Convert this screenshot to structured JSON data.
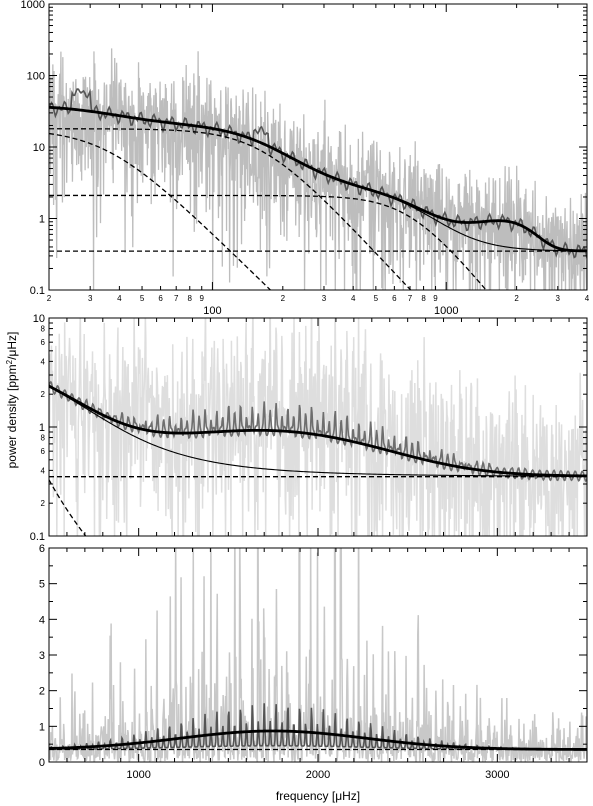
{
  "chart_data": [
    {
      "type": "line",
      "panel": "top",
      "scale": {
        "x": "log",
        "y": "log"
      },
      "xlim": [
        20,
        4000
      ],
      "ylim": [
        0.1,
        1000
      ],
      "grid": false,
      "x_major_ticks": [
        {
          "value": 100,
          "label": "100"
        },
        {
          "value": 1000,
          "label": "1000"
        }
      ],
      "x_minor_ticks": [
        {
          "value": 20,
          "label": "2"
        },
        {
          "value": 30,
          "label": "3"
        },
        {
          "value": 40,
          "label": "4"
        },
        {
          "value": 50,
          "label": "5"
        },
        {
          "value": 60,
          "label": "6"
        },
        {
          "value": 70,
          "label": "7"
        },
        {
          "value": 80,
          "label": "8"
        },
        {
          "value": 90,
          "label": "9"
        },
        {
          "value": 200,
          "label": "2"
        },
        {
          "value": 300,
          "label": "3"
        },
        {
          "value": 400,
          "label": "4"
        },
        {
          "value": 500,
          "label": "5"
        },
        {
          "value": 600,
          "label": "6"
        },
        {
          "value": 700,
          "label": "7"
        },
        {
          "value": 800,
          "label": "8"
        },
        {
          "value": 900,
          "label": "9"
        },
        {
          "value": 2000,
          "label": "2"
        },
        {
          "value": 3000,
          "label": "3"
        },
        {
          "value": 4000,
          "label": "4"
        }
      ],
      "y_major_ticks": [
        {
          "value": 0.1,
          "label": "0.1"
        },
        {
          "value": 1,
          "label": "1"
        },
        {
          "value": 10,
          "label": "10"
        },
        {
          "value": 100,
          "label": "100"
        },
        {
          "value": 1000,
          "label": "1000"
        }
      ],
      "series": [
        {
          "role": "raw-spectrum",
          "color": "#bdbdbd"
        },
        {
          "role": "smoothed-spectrum",
          "color": "#555555"
        },
        {
          "role": "global-fit",
          "color": "#000000"
        },
        {
          "role": "background-fit",
          "color": "#000000"
        },
        {
          "role": "white-noise",
          "style": "dashed",
          "color": "#000000",
          "value": 0.35
        },
        {
          "role": "granulation-component",
          "style": "dashed",
          "color": "#000000",
          "level": 2.1
        },
        {
          "role": "granulation-component",
          "style": "dashed",
          "color": "#000000",
          "level": 18
        },
        {
          "role": "activity-component",
          "style": "dashed",
          "color": "#000000"
        }
      ]
    },
    {
      "type": "line",
      "panel": "middle",
      "scale": {
        "x": "linear",
        "y": "log"
      },
      "xlim": [
        500,
        3500
      ],
      "ylim": [
        0.1,
        10
      ],
      "grid": false,
      "x_major_ticks": [
        {
          "value": 1000,
          "label": ""
        },
        {
          "value": 2000,
          "label": ""
        },
        {
          "value": 3000,
          "label": ""
        }
      ],
      "y_major_ticks": [
        {
          "value": 0.1,
          "label": "0.1"
        },
        {
          "value": 1,
          "label": "1"
        },
        {
          "value": 10,
          "label": "10"
        }
      ],
      "y_minor_ticks": [
        {
          "value": 2,
          "label": "2"
        },
        {
          "value": 4,
          "label": "4"
        },
        {
          "value": 6,
          "label": "6"
        },
        {
          "value": 8,
          "label": "8"
        },
        {
          "value": 0.2,
          "label": "2"
        },
        {
          "value": 0.4,
          "label": "4"
        },
        {
          "value": 0.6,
          "label": "6"
        },
        {
          "value": 0.8,
          "label": "8"
        }
      ],
      "series": [
        {
          "role": "raw-spectrum",
          "color": "#dedede"
        },
        {
          "role": "smoothed-spectrum",
          "color": "#6e6e6e"
        },
        {
          "role": "global-fit",
          "color": "#000000"
        },
        {
          "role": "background-fit",
          "color": "#000000"
        },
        {
          "role": "white-noise",
          "style": "dashed",
          "color": "#000000",
          "value": 0.35
        },
        {
          "role": "granulation-component",
          "style": "dashed",
          "color": "#000000"
        }
      ]
    },
    {
      "type": "line",
      "panel": "bottom",
      "scale": {
        "x": "linear",
        "y": "linear"
      },
      "xlim": [
        500,
        3500
      ],
      "ylim": [
        0,
        6
      ],
      "grid": false,
      "xlabel": "frequency [μHz]",
      "x_major_ticks": [
        {
          "value": 1000,
          "label": "1000"
        },
        {
          "value": 2000,
          "label": "2000"
        },
        {
          "value": 3000,
          "label": "3000"
        }
      ],
      "y_major_ticks": [
        {
          "value": 0,
          "label": "0"
        },
        {
          "value": 1,
          "label": "1"
        },
        {
          "value": 2,
          "label": "2"
        },
        {
          "value": 3,
          "label": "3"
        },
        {
          "value": 4,
          "label": "4"
        },
        {
          "value": 5,
          "label": "5"
        },
        {
          "value": 6,
          "label": "6"
        }
      ],
      "series": [
        {
          "role": "raw-spectrum",
          "color": "#c8c8c8"
        },
        {
          "role": "smoothed-spectrum",
          "color": "#555555"
        },
        {
          "role": "global-fit",
          "color": "#000000"
        },
        {
          "role": "white-noise",
          "style": "dashed",
          "color": "#000000",
          "value": 0.35
        }
      ]
    }
  ],
  "figure": {
    "ylabel_main": "power density [ppm",
    "ylabel_sup": "2",
    "ylabel_tail": "/μHz]"
  }
}
